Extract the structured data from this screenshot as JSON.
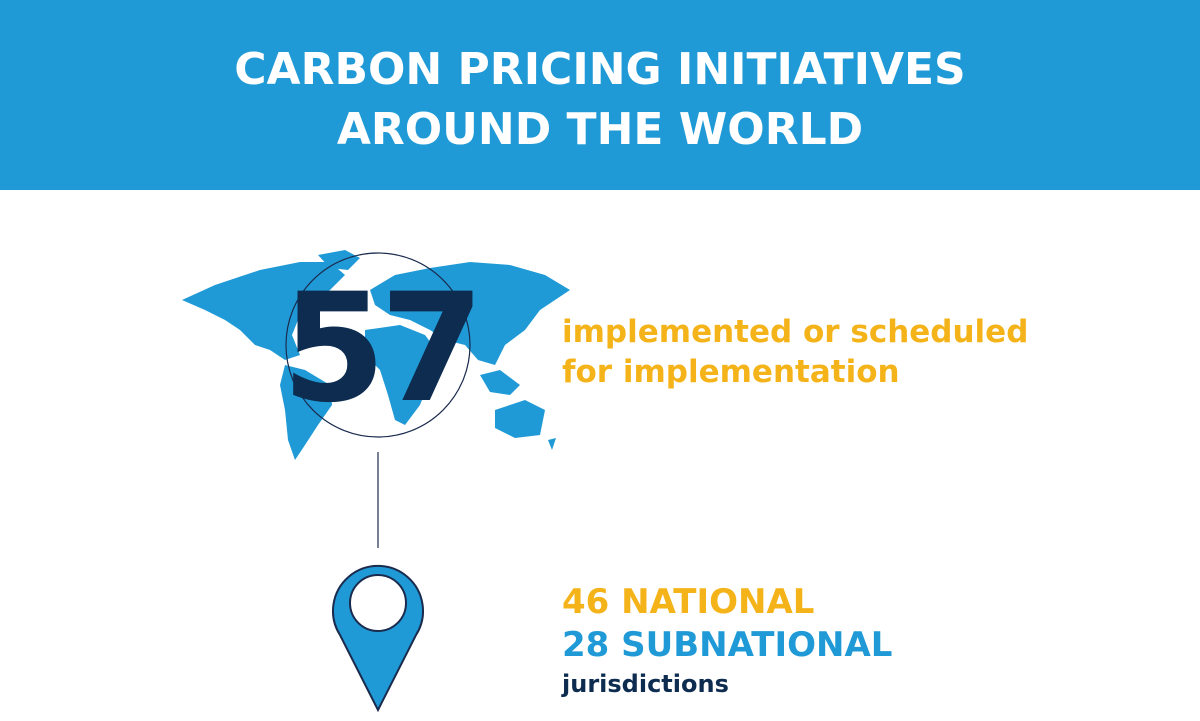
{
  "header": {
    "title_lines": [
      "CARBON PRICING INITIATIVES",
      "AROUND THE WORLD"
    ]
  },
  "highlight": {
    "number": "57",
    "text_lines": [
      "implemented or scheduled",
      "for implementation"
    ]
  },
  "breakdown": {
    "national": "46 NATIONAL",
    "subnational": "28 SUBNATIONAL",
    "unit": "jurisdictions"
  }
}
